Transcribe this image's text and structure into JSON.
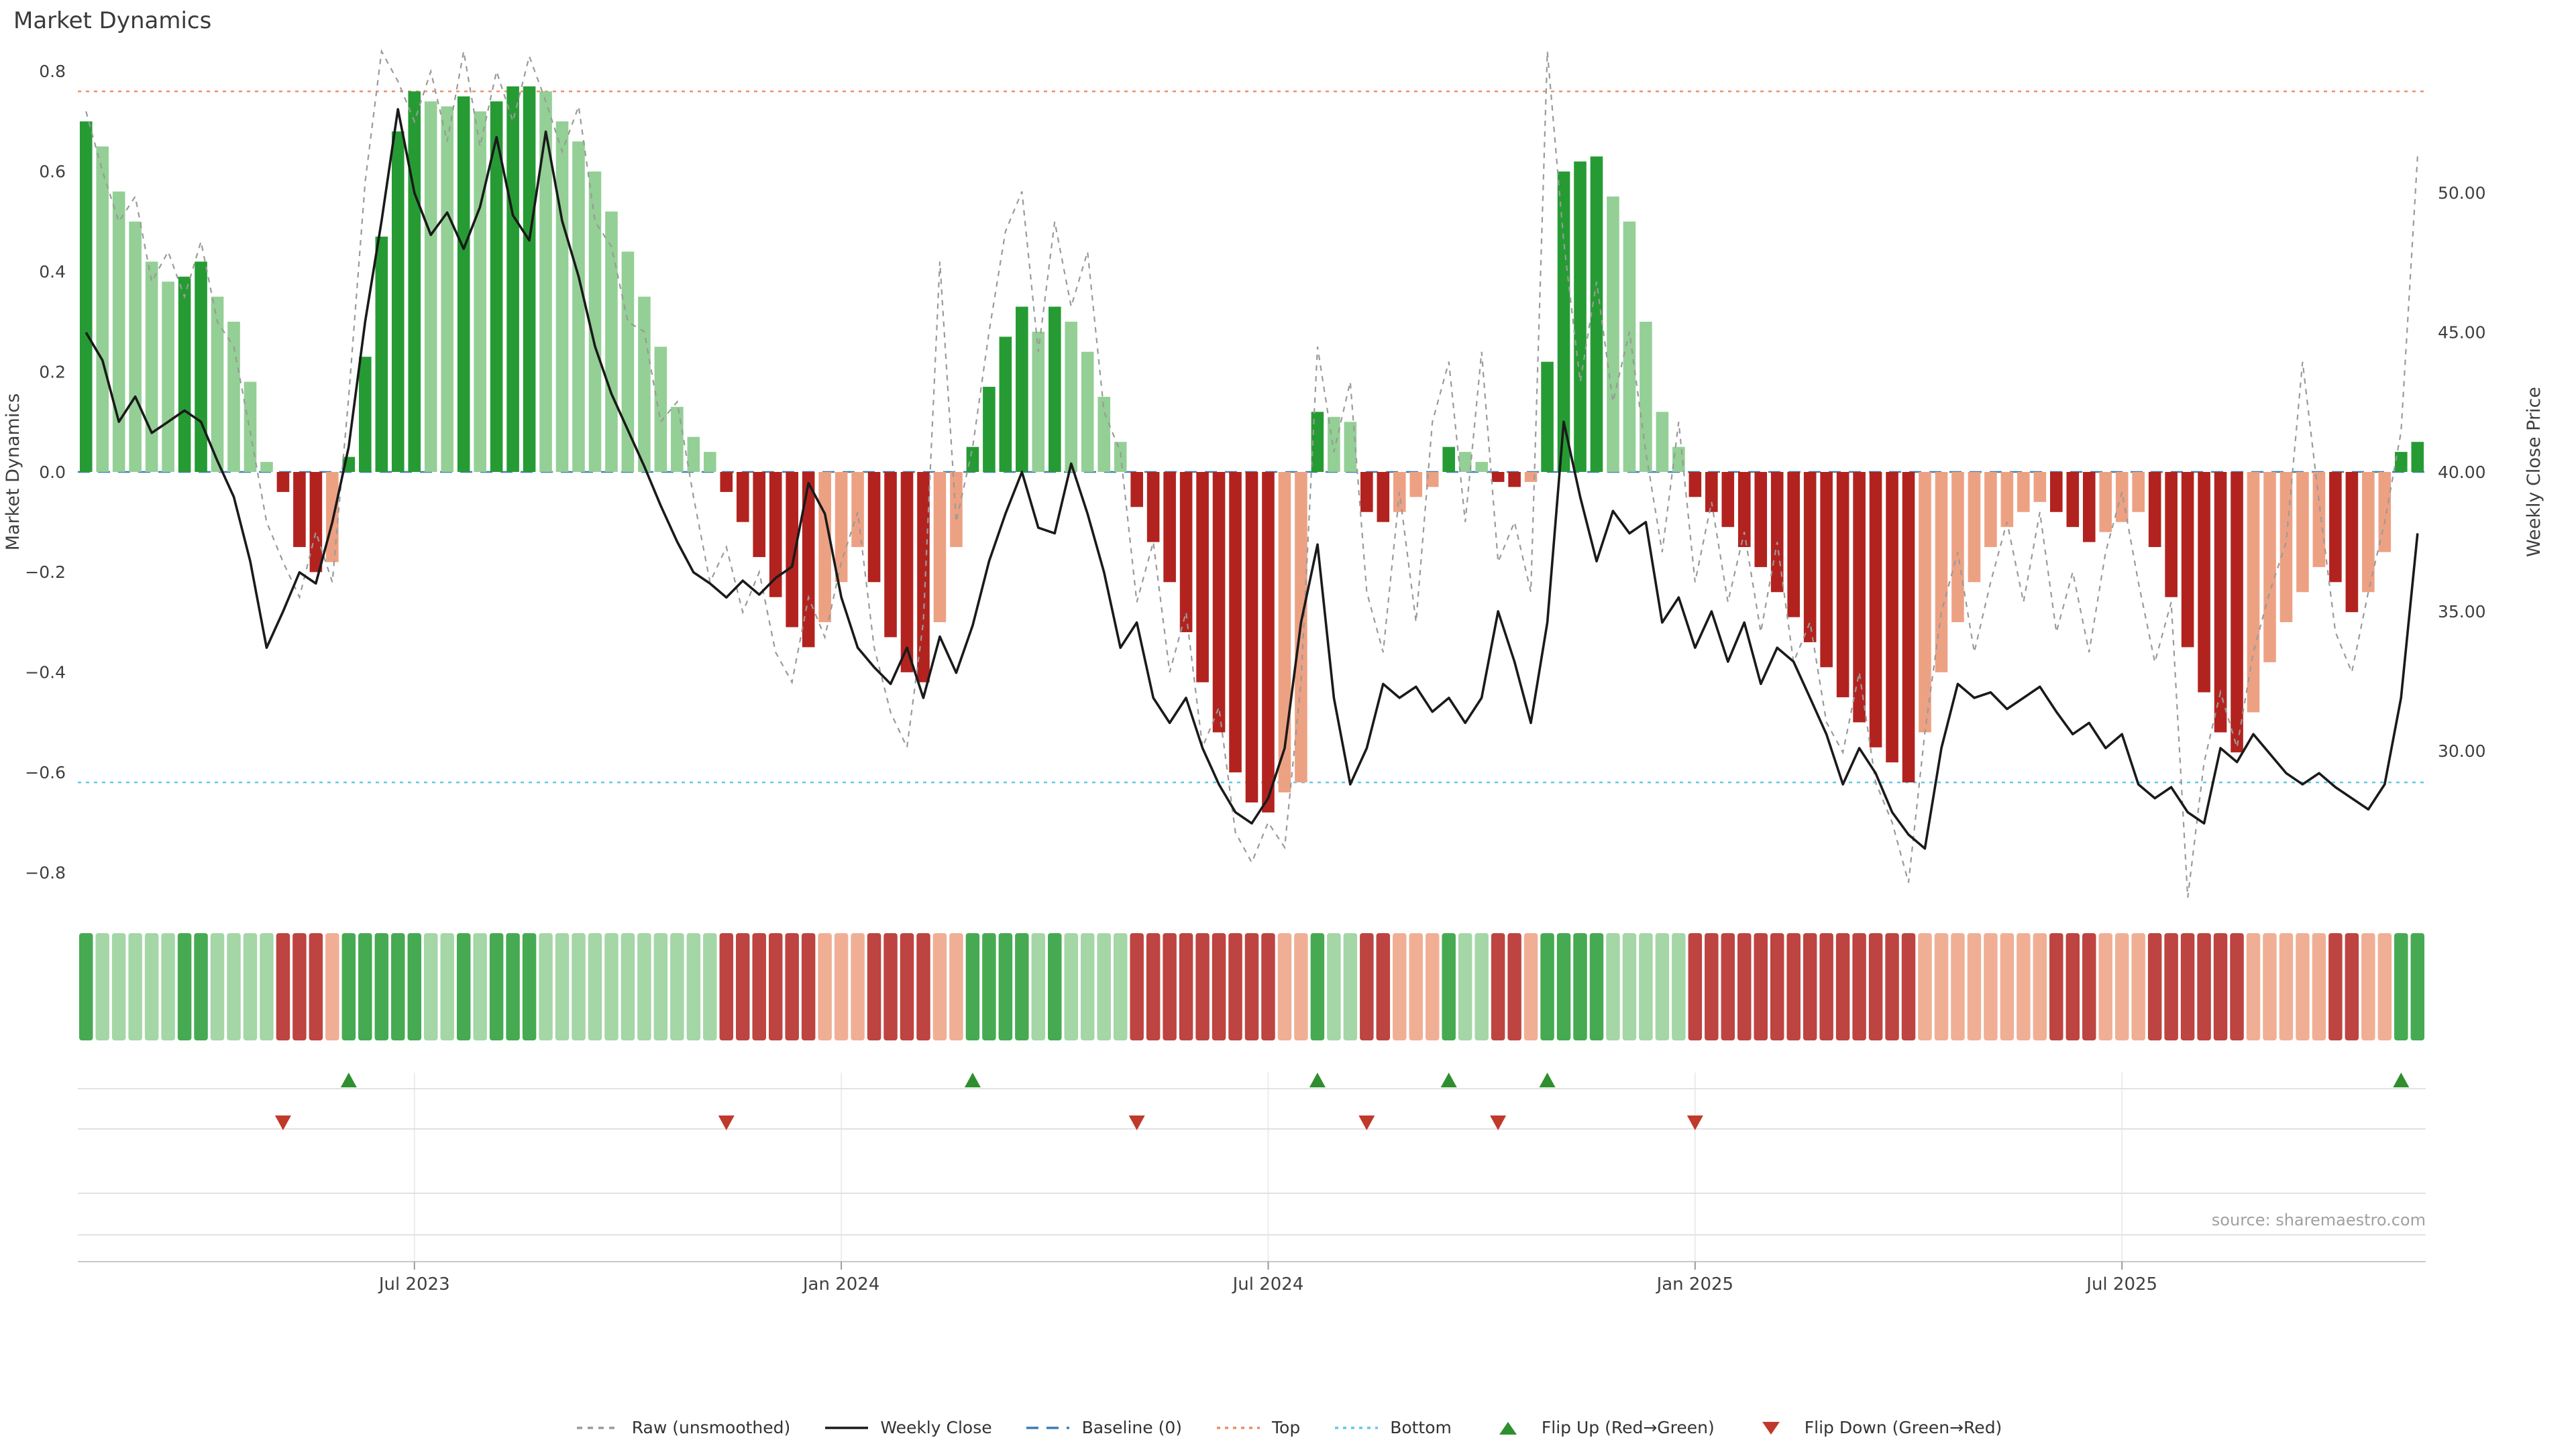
{
  "chart_data": {
    "type": "bar+line",
    "title": "Market Dynamics",
    "ylabel_left": "Market Dynamics",
    "ylabel_right": "Weekly Close Price",
    "source_text": "source: sharemaestro.com",
    "y1lim": [
      -0.83,
      0.83
    ],
    "y2lim": [
      25.1,
      54.9
    ],
    "top_line": 0.76,
    "bottom_line": -0.62,
    "baseline": 0,
    "grid": false,
    "legend_position": "bottom-center",
    "y1_ticks": [
      {
        "value": 0.8,
        "label": "0.8"
      },
      {
        "value": 0.6,
        "label": "0.6"
      },
      {
        "value": 0.4,
        "label": "0.4"
      },
      {
        "value": 0.2,
        "label": "0.2"
      },
      {
        "value": 0.0,
        "label": "0.0"
      },
      {
        "value": -0.2,
        "label": "−0.2"
      },
      {
        "value": -0.4,
        "label": "−0.4"
      },
      {
        "value": -0.6,
        "label": "−0.6"
      },
      {
        "value": -0.8,
        "label": "−0.8"
      }
    ],
    "y2_ticks": [
      {
        "value": 50,
        "label": "50.00"
      },
      {
        "value": 45,
        "label": "45.00"
      },
      {
        "value": 40,
        "label": "40.00"
      },
      {
        "value": 35,
        "label": "35.00"
      },
      {
        "value": 30,
        "label": "30.00"
      }
    ],
    "x_ticks": [
      {
        "week": 20,
        "label": "Jul 2023"
      },
      {
        "week": 46,
        "label": "Jan 2024"
      },
      {
        "week": 72,
        "label": "Jul 2024"
      },
      {
        "week": 98,
        "label": "Jan 2025"
      },
      {
        "week": 124,
        "label": "Jul 2025"
      }
    ],
    "series": {
      "dynamics": [
        0.7,
        0.65,
        0.56,
        0.5,
        0.42,
        0.38,
        0.39,
        0.42,
        0.35,
        0.3,
        0.18,
        0.02,
        -0.04,
        -0.15,
        -0.2,
        -0.18,
        0.03,
        0.23,
        0.47,
        0.68,
        0.76,
        0.74,
        0.73,
        0.75,
        0.72,
        0.74,
        0.77,
        0.77,
        0.76,
        0.7,
        0.66,
        0.6,
        0.52,
        0.44,
        0.35,
        0.25,
        0.13,
        0.07,
        0.04,
        -0.04,
        -0.1,
        -0.17,
        -0.25,
        -0.31,
        -0.35,
        -0.3,
        -0.22,
        -0.15,
        -0.22,
        -0.33,
        -0.4,
        -0.42,
        -0.3,
        -0.15,
        0.05,
        0.17,
        0.27,
        0.33,
        0.28,
        0.33,
        0.3,
        0.24,
        0.15,
        0.06,
        -0.07,
        -0.14,
        -0.22,
        -0.32,
        -0.42,
        -0.52,
        -0.6,
        -0.66,
        -0.68,
        -0.64,
        -0.62,
        0.12,
        0.11,
        0.1,
        -0.08,
        -0.1,
        -0.08,
        -0.05,
        -0.03,
        0.05,
        0.04,
        0.02,
        -0.02,
        -0.03,
        -0.02,
        0.22,
        0.6,
        0.62,
        0.63,
        0.55,
        0.5,
        0.3,
        0.12,
        0.05,
        -0.05,
        -0.08,
        -0.11,
        -0.15,
        -0.19,
        -0.24,
        -0.29,
        -0.34,
        -0.39,
        -0.45,
        -0.5,
        -0.55,
        -0.58,
        -0.62,
        -0.52,
        -0.4,
        -0.3,
        -0.22,
        -0.15,
        -0.11,
        -0.08,
        -0.06,
        -0.08,
        -0.11,
        -0.14,
        -0.12,
        -0.1,
        -0.08,
        -0.15,
        -0.25,
        -0.35,
        -0.44,
        -0.52,
        -0.56,
        -0.48,
        -0.38,
        -0.3,
        -0.24,
        -0.19,
        -0.22,
        -0.28,
        -0.24,
        -0.16,
        0.04,
        0.06
      ],
      "raw": [
        0.72,
        0.6,
        0.5,
        0.55,
        0.38,
        0.44,
        0.35,
        0.46,
        0.3,
        0.25,
        0.08,
        -0.1,
        -0.18,
        -0.25,
        -0.12,
        -0.22,
        0.15,
        0.58,
        0.84,
        0.78,
        0.7,
        0.8,
        0.66,
        0.84,
        0.65,
        0.8,
        0.7,
        0.83,
        0.74,
        0.64,
        0.73,
        0.5,
        0.45,
        0.3,
        0.28,
        0.1,
        0.14,
        -0.05,
        -0.22,
        -0.15,
        -0.28,
        -0.2,
        -0.36,
        -0.42,
        -0.25,
        -0.33,
        -0.18,
        -0.08,
        -0.35,
        -0.48,
        -0.55,
        -0.3,
        0.42,
        -0.1,
        0.05,
        0.28,
        0.48,
        0.56,
        0.24,
        0.5,
        0.33,
        0.44,
        0.12,
        0.04,
        -0.26,
        -0.14,
        -0.4,
        -0.28,
        -0.55,
        -0.47,
        -0.72,
        -0.78,
        -0.7,
        -0.75,
        -0.42,
        0.25,
        0.04,
        0.18,
        -0.24,
        -0.36,
        -0.04,
        -0.3,
        0.1,
        0.22,
        -0.1,
        0.24,
        -0.18,
        -0.1,
        -0.24,
        0.84,
        0.46,
        0.18,
        0.38,
        0.14,
        0.28,
        0.04,
        -0.16,
        0.1,
        -0.22,
        -0.06,
        -0.26,
        -0.12,
        -0.32,
        -0.14,
        -0.38,
        -0.3,
        -0.5,
        -0.56,
        -0.4,
        -0.62,
        -0.7,
        -0.82,
        -0.52,
        -0.28,
        -0.16,
        -0.36,
        -0.22,
        -0.1,
        -0.26,
        -0.08,
        -0.32,
        -0.2,
        -0.36,
        -0.16,
        -0.04,
        -0.22,
        -0.38,
        -0.26,
        -0.85,
        -0.58,
        -0.44,
        -0.55,
        -0.36,
        -0.24,
        -0.14,
        0.22,
        -0.06,
        -0.32,
        -0.4,
        -0.24,
        -0.1,
        0.08,
        0.63
      ],
      "weekly_close": [
        45.0,
        44.0,
        41.8,
        42.7,
        41.4,
        41.8,
        42.2,
        41.8,
        40.4,
        39.1,
        36.8,
        33.7,
        35.0,
        36.4,
        36.0,
        38.2,
        40.9,
        45.4,
        49.0,
        53.0,
        50.0,
        48.5,
        49.3,
        48.0,
        49.5,
        52.0,
        49.2,
        48.3,
        52.2,
        49.0,
        47.0,
        44.5,
        42.8,
        41.5,
        40.2,
        38.8,
        37.5,
        36.4,
        36.0,
        35.5,
        36.1,
        35.6,
        36.2,
        36.6,
        39.6,
        38.5,
        35.5,
        33.7,
        33.0,
        32.4,
        33.7,
        31.9,
        34.1,
        32.8,
        34.5,
        36.8,
        38.5,
        40.0,
        38.0,
        37.8,
        40.3,
        38.5,
        36.4,
        33.7,
        34.6,
        31.9,
        31.0,
        31.9,
        30.1,
        28.8,
        27.8,
        27.4,
        28.3,
        30.1,
        34.6,
        37.4,
        31.9,
        28.8,
        30.1,
        32.4,
        31.9,
        32.3,
        31.4,
        31.9,
        31.0,
        31.9,
        35.0,
        33.2,
        31.0,
        34.6,
        41.8,
        39.1,
        36.8,
        38.6,
        37.8,
        38.2,
        34.6,
        35.5,
        33.7,
        35.0,
        33.2,
        34.6,
        32.4,
        33.7,
        33.2,
        31.9,
        30.6,
        28.8,
        30.1,
        29.2,
        27.8,
        27.0,
        26.5,
        30.1,
        32.4,
        31.9,
        32.1,
        31.5,
        31.9,
        32.3,
        31.4,
        30.6,
        31.0,
        30.1,
        30.6,
        28.8,
        28.3,
        28.7,
        27.8,
        27.4,
        30.1,
        29.6,
        30.6,
        29.9,
        29.2,
        28.8,
        29.2,
        28.7,
        28.3,
        27.9,
        28.8,
        31.9,
        37.8
      ]
    },
    "flip_up_weeks": [
      16,
      54,
      75,
      83,
      89,
      141
    ],
    "flip_down_weeks": [
      12,
      39,
      64,
      78,
      86,
      98
    ],
    "colors": {
      "bar_up_strong": "#269b34",
      "bar_up_soft": "#94cf96",
      "bar_down_strong": "#b2231f",
      "bar_down_soft": "#eda183",
      "raw_line": "#9a9a9a",
      "close_line": "#1a1a1a",
      "baseline": "#3a7fb5",
      "top": "#ec8c64",
      "bottom": "#62c8e8",
      "flip_up": "#2f8f2f",
      "flip_down": "#c0392b"
    },
    "legend": [
      {
        "label": "Raw (unsmoothed)",
        "kind": "line",
        "color": "#9a9a9a",
        "dash": "4 4"
      },
      {
        "label": "Weekly Close",
        "kind": "line",
        "color": "#1a1a1a",
        "dash": ""
      },
      {
        "label": "Baseline (0)",
        "kind": "line",
        "color": "#3a7fb5",
        "dash": "9 6"
      },
      {
        "label": "Top",
        "kind": "line",
        "color": "#ec8c64",
        "dash": "2.5 3.5"
      },
      {
        "label": "Bottom",
        "kind": "line",
        "color": "#62c8e8",
        "dash": "2.5 3.5"
      },
      {
        "label": "Flip Up (Red→Green)",
        "kind": "triangle-up",
        "color": "#2f8f2f",
        "dash": ""
      },
      {
        "label": "Flip Down (Green→Red)",
        "kind": "triangle-down",
        "color": "#c0392b",
        "dash": ""
      }
    ]
  }
}
